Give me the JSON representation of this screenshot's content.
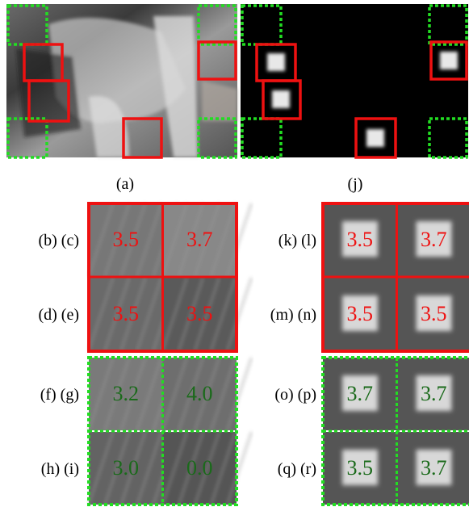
{
  "figure": {
    "left": {
      "caption": "(a)",
      "rows": [
        {
          "label": "(b) (c)",
          "cells": [
            "3.5",
            "3.7"
          ]
        },
        {
          "label": "(d) (e)",
          "cells": [
            "3.5",
            "3.5"
          ]
        },
        {
          "label": "(f) (g)",
          "cells": [
            "3.2",
            "4.0"
          ]
        },
        {
          "label": "(h) (i)",
          "cells": [
            "3.0",
            "0.0"
          ]
        }
      ]
    },
    "right": {
      "caption": "(j)",
      "rows": [
        {
          "label": "(k) (l)",
          "cells": [
            "3.5",
            "3.7"
          ]
        },
        {
          "label": "(m) (n)",
          "cells": [
            "3.5",
            "3.5"
          ]
        },
        {
          "label": "(o) (p)",
          "cells": [
            "3.7",
            "3.7"
          ]
        },
        {
          "label": "(q) (r)",
          "cells": [
            "3.5",
            "3.7"
          ]
        }
      ]
    }
  }
}
